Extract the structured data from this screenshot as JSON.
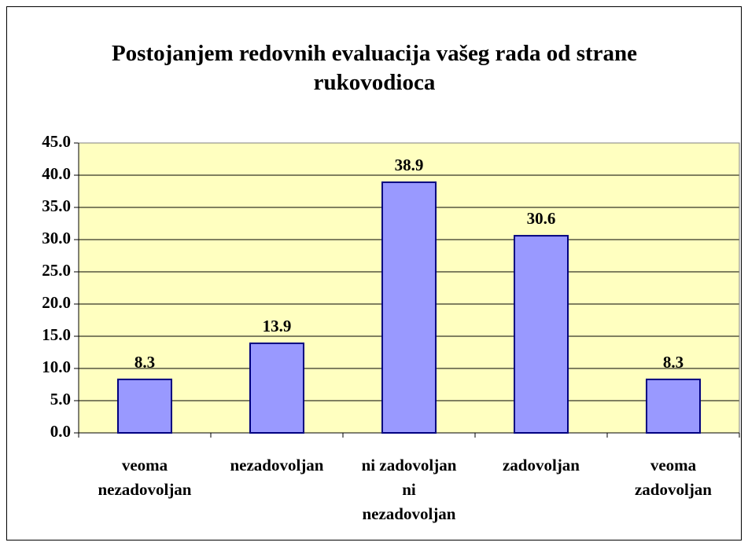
{
  "chart_data": {
    "type": "bar",
    "title": "Postojanjem redovnih evaluacija vašeg rada od strane rukovodioca",
    "categories": [
      "veoma\nnezadovoljan",
      "nezadovoljan",
      "ni zadovoljan\nni\nnezadovoljan",
      "zadovoljan",
      "veoma\nzadovoljan"
    ],
    "values": [
      8.3,
      13.9,
      38.9,
      30.6,
      8.3
    ],
    "color": "#9999ff",
    "ylim": [
      0,
      45
    ],
    "yticks": [
      {
        "value": 0,
        "label": "0.0"
      },
      {
        "value": 5,
        "label": "5.0"
      },
      {
        "value": 10,
        "label": "10.0"
      },
      {
        "value": 15,
        "label": "15.0"
      },
      {
        "value": 20,
        "label": "20.0"
      },
      {
        "value": 25,
        "label": "25.0"
      },
      {
        "value": 30,
        "label": "30.0"
      },
      {
        "value": 35,
        "label": "35.0"
      },
      {
        "value": 40,
        "label": "40.0"
      },
      {
        "value": 45,
        "label": "45.0"
      }
    ],
    "grid": true
  }
}
